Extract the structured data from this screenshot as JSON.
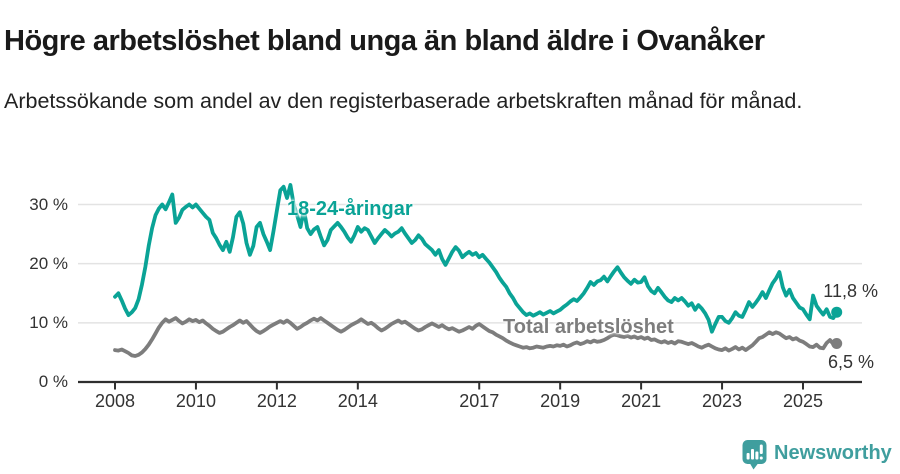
{
  "header": {
    "title": "Högre arbetslöshet bland unga än bland äldre i Ovanåker",
    "subtitle": "Arbetssökande som andel av den registerbaserade arbetskraften månad för månad."
  },
  "footer": {
    "brand": "Newsworthy",
    "logo_icon": "bar-chart-speech-bubble-icon",
    "brand_color": "#3f9e9e"
  },
  "chart_data": {
    "type": "line",
    "title": "Högre arbetslöshet bland unga än bland äldre i Ovanåker",
    "subtitle": "Arbetssökande som andel av den registerbaserade arbetskraften månad för månad.",
    "x_unit": "month",
    "x_start": "2008-01",
    "x_end": "2025-11",
    "xticks": [
      2008,
      2010,
      2012,
      2014,
      2017,
      2019,
      2021,
      2023,
      2025
    ],
    "ytick_values": [
      0,
      10,
      20,
      30
    ],
    "ytick_labels": [
      "0 %",
      "10 %",
      "20 %",
      "30 %"
    ],
    "ylim": [
      0,
      34
    ],
    "grid": "horizontal",
    "legend_position": "inline-labels",
    "axis_color": "#2f2f2f",
    "grid_color": "#e3e3e3",
    "series": [
      {
        "name": "18-24-åringar",
        "color": "#0aa396",
        "end_label": "11,8 %",
        "end_value": 11.8,
        "values": [
          14.4,
          15.0,
          13.8,
          12.4,
          11.3,
          11.8,
          12.5,
          14.0,
          16.5,
          19.5,
          23.0,
          26.0,
          28.2,
          29.3,
          30.0,
          29.2,
          30.4,
          31.7,
          26.9,
          27.8,
          29.1,
          29.6,
          30.0,
          29.5,
          30.0,
          29.3,
          28.6,
          27.9,
          27.4,
          25.2,
          24.3,
          23.2,
          22.3,
          23.7,
          22.0,
          24.5,
          27.9,
          28.7,
          26.8,
          23.5,
          21.5,
          23.0,
          26.2,
          26.9,
          25.0,
          23.7,
          22.3,
          25.5,
          29.0,
          32.4,
          33.0,
          31.1,
          33.3,
          30.0,
          28.2,
          26.2,
          29.1,
          26.0,
          25.0,
          25.8,
          26.2,
          24.6,
          23.1,
          24.0,
          25.7,
          26.3,
          26.9,
          26.2,
          25.4,
          24.4,
          23.7,
          24.8,
          26.2,
          25.4,
          26.0,
          25.7,
          24.6,
          23.5,
          24.3,
          25.0,
          25.7,
          25.2,
          24.6,
          25.1,
          25.4,
          26.0,
          25.1,
          24.3,
          23.5,
          24.0,
          24.8,
          24.2,
          23.3,
          22.8,
          22.3,
          21.5,
          22.3,
          20.8,
          19.8,
          20.9,
          22.0,
          22.8,
          22.2,
          21.1,
          21.6,
          22.0,
          21.5,
          21.8,
          21.1,
          21.5,
          20.8,
          20.2,
          19.4,
          18.6,
          17.6,
          16.8,
          16.1,
          15.0,
          14.2,
          13.2,
          12.5,
          11.8,
          11.3,
          11.6,
          11.2,
          11.5,
          11.8,
          11.4,
          11.7,
          12.0,
          11.6,
          11.9,
          12.2,
          12.7,
          13.1,
          13.6,
          14.0,
          13.7,
          14.3,
          15.0,
          15.9,
          16.9,
          16.4,
          17.0,
          17.2,
          17.8,
          17.0,
          17.9,
          18.7,
          19.4,
          18.5,
          17.7,
          17.1,
          16.6,
          17.3,
          16.8,
          16.9,
          17.7,
          16.2,
          15.4,
          15.0,
          15.9,
          15.2,
          14.4,
          13.8,
          13.5,
          14.2,
          13.8,
          14.2,
          13.6,
          12.9,
          13.3,
          12.2,
          13.0,
          12.4,
          11.6,
          10.5,
          8.5,
          9.8,
          11.0,
          11.0,
          10.3,
          10.0,
          10.8,
          11.8,
          11.2,
          11.0,
          12.2,
          13.5,
          12.7,
          13.4,
          14.2,
          15.2,
          14.2,
          15.5,
          16.7,
          17.5,
          18.6,
          16.0,
          14.6,
          15.6,
          14.2,
          13.4,
          12.6,
          12.3,
          11.4,
          10.6,
          14.6,
          12.9,
          12.1,
          11.4,
          12.3,
          11.0,
          10.8,
          11.8
        ]
      },
      {
        "name": "Total arbetslöshet",
        "color": "#7d7d7d",
        "end_label": "6,5 %",
        "end_value": 6.5,
        "values": [
          5.4,
          5.3,
          5.5,
          5.2,
          4.9,
          4.5,
          4.4,
          4.6,
          5.0,
          5.6,
          6.3,
          7.2,
          8.2,
          9.2,
          10.0,
          10.6,
          10.2,
          10.5,
          10.8,
          10.3,
          9.9,
          10.2,
          10.6,
          10.3,
          10.5,
          10.1,
          10.4,
          9.9,
          9.5,
          9.0,
          8.6,
          8.3,
          8.5,
          8.9,
          9.3,
          9.6,
          10.0,
          10.4,
          10.0,
          10.3,
          9.7,
          9.1,
          8.6,
          8.3,
          8.6,
          9.0,
          9.4,
          9.7,
          10.0,
          10.3,
          10.0,
          10.4,
          10.0,
          9.5,
          9.0,
          9.3,
          9.7,
          10.0,
          10.4,
          10.7,
          10.4,
          10.8,
          10.4,
          10.0,
          9.6,
          9.2,
          8.8,
          8.5,
          8.8,
          9.2,
          9.6,
          9.9,
          10.2,
          10.6,
          10.2,
          9.8,
          10.0,
          9.6,
          9.1,
          8.7,
          9.0,
          9.4,
          9.8,
          10.1,
          10.4,
          10.0,
          10.2,
          9.8,
          9.4,
          9.0,
          8.7,
          8.9,
          9.3,
          9.6,
          9.9,
          9.6,
          9.3,
          9.6,
          9.2,
          8.9,
          9.1,
          8.8,
          8.5,
          8.7,
          9.0,
          9.3,
          9.0,
          9.5,
          9.8,
          9.4,
          9.0,
          8.6,
          8.4,
          8.0,
          7.7,
          7.4,
          7.0,
          6.7,
          6.4,
          6.2,
          6.0,
          5.8,
          5.9,
          5.7,
          5.8,
          6.0,
          5.9,
          5.8,
          6.0,
          6.1,
          6.0,
          6.2,
          6.1,
          6.3,
          6.0,
          6.2,
          6.5,
          6.7,
          6.4,
          6.6,
          6.9,
          6.7,
          7.0,
          6.8,
          6.9,
          7.1,
          7.4,
          7.8,
          8.0,
          7.9,
          7.7,
          7.6,
          7.8,
          7.5,
          7.7,
          7.4,
          7.6,
          7.3,
          7.5,
          7.1,
          7.2,
          6.9,
          6.7,
          6.9,
          6.6,
          6.8,
          6.5,
          6.9,
          6.8,
          6.6,
          6.4,
          6.6,
          6.3,
          6.0,
          5.8,
          6.1,
          6.3,
          6.0,
          5.7,
          5.5,
          5.4,
          5.7,
          5.3,
          5.6,
          5.9,
          5.5,
          5.8,
          5.4,
          5.8,
          6.2,
          6.8,
          7.4,
          7.6,
          8.0,
          8.4,
          8.1,
          8.4,
          8.2,
          7.8,
          7.4,
          7.6,
          7.2,
          7.4,
          7.0,
          6.8,
          6.4,
          6.0,
          5.9,
          6.3,
          5.8,
          5.7,
          6.6,
          7.1,
          6.4,
          6.5
        ]
      }
    ]
  }
}
